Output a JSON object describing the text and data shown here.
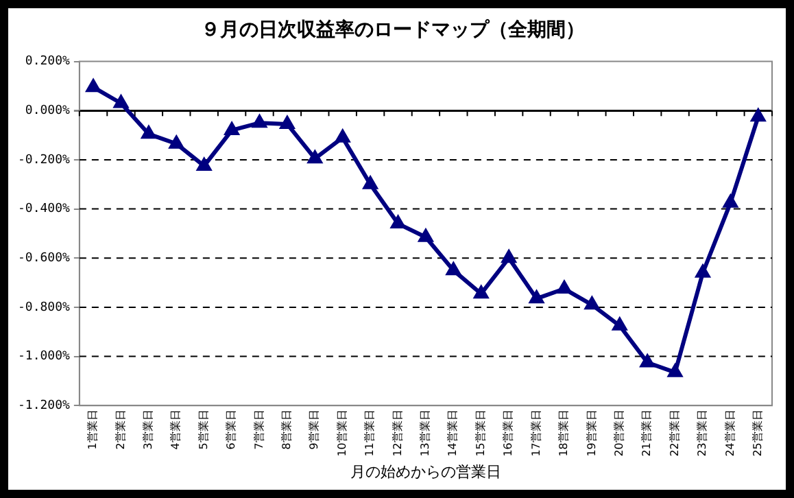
{
  "chart_data": {
    "type": "line",
    "title": "９月の日次収益率のロードマップ（全期間）",
    "xlabel": "月の始めからの営業日",
    "categories": [
      "1営業日",
      "2営業日",
      "3営業日",
      "4営業日",
      "5営業日",
      "6営業日",
      "7営業日",
      "8営業日",
      "9営業日",
      "10営業日",
      "11営業日",
      "12営業日",
      "13営業日",
      "14営業日",
      "15営業日",
      "16営業日",
      "17営業日",
      "18営業日",
      "19営業日",
      "20営業日",
      "21営業日",
      "22営業日",
      "23営業日",
      "24営業日",
      "25営業日"
    ],
    "series": [
      {
        "color": "#000080",
        "values": [
          0.095,
          0.03,
          -0.095,
          -0.135,
          -0.225,
          -0.08,
          -0.05,
          -0.055,
          -0.195,
          -0.11,
          -0.3,
          -0.46,
          -0.515,
          -0.65,
          -0.745,
          -0.6,
          -0.765,
          -0.725,
          -0.79,
          -0.875,
          -1.025,
          -1.065,
          -0.66,
          -0.375,
          -0.025
        ]
      }
    ],
    "ylim": [
      -1.2,
      0.2
    ],
    "yticks": [
      {
        "value": -1.2,
        "label": "-1.200%"
      },
      {
        "value": -1,
        "label": "-1.000%"
      },
      {
        "value": -0.8,
        "label": "-0.800%"
      },
      {
        "value": -0.6,
        "label": "-0.600%"
      },
      {
        "value": -0.4,
        "label": "-0.400%"
      },
      {
        "value": -0.2,
        "label": "-0.200%"
      },
      {
        "value": 0,
        "label": "0.000%"
      },
      {
        "value": 0.2,
        "label": "0.200%"
      }
    ],
    "grid": "y",
    "legend": false,
    "marker": "triangle",
    "line_style": "solid"
  }
}
